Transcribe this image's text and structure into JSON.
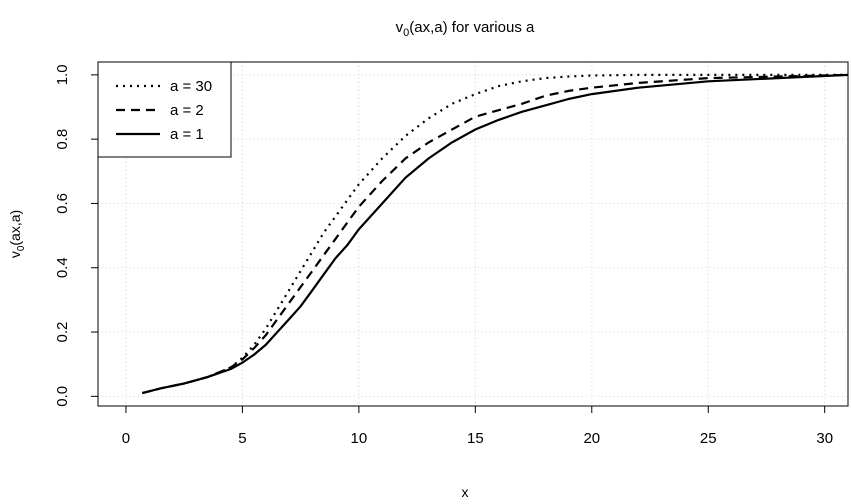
{
  "chart_data": {
    "type": "line",
    "title_main": "v",
    "title_sub": "0",
    "title_rest": "(ax,a) for various a",
    "xlabel": "x",
    "ylabel_main": "v",
    "ylabel_sub": "0",
    "ylabel_rest": "(ax,a)",
    "xlim": [
      -1.2,
      31
    ],
    "ylim": [
      -0.03,
      1.04
    ],
    "x_ticks": [
      0,
      5,
      10,
      15,
      20,
      25,
      30
    ],
    "y_ticks": [
      0.0,
      0.2,
      0.4,
      0.6,
      0.8,
      1.0
    ],
    "x_tick_labels": [
      "0",
      "5",
      "10",
      "15",
      "20",
      "25",
      "30"
    ],
    "y_tick_labels": [
      "0.0",
      "0.2",
      "0.4",
      "0.6",
      "0.8",
      "1.0"
    ],
    "grid": true,
    "legend_position": "top-left",
    "series": [
      {
        "name": "a = 30",
        "dash": "dotted",
        "x": [
          0.7,
          1.5,
          2.5,
          3.5,
          4.5,
          5.0,
          5.5,
          6.0,
          6.5,
          7.0,
          7.5,
          8.0,
          8.5,
          9.0,
          9.5,
          10.0,
          11.0,
          12.0,
          13.0,
          14.0,
          15.0,
          16.0,
          17.0,
          18.0,
          19.0,
          20.0,
          22.0,
          25.0,
          28.0,
          31.0
        ],
        "y": [
          0.01,
          0.025,
          0.04,
          0.06,
          0.09,
          0.12,
          0.16,
          0.21,
          0.27,
          0.33,
          0.39,
          0.45,
          0.51,
          0.56,
          0.61,
          0.66,
          0.74,
          0.81,
          0.865,
          0.91,
          0.94,
          0.965,
          0.98,
          0.99,
          0.995,
          0.998,
          1.0,
          1.0,
          1.0,
          1.0
        ]
      },
      {
        "name": "a = 2",
        "dash": "dashed",
        "x": [
          0.7,
          1.5,
          2.5,
          3.5,
          4.5,
          5.0,
          5.5,
          6.0,
          6.5,
          7.0,
          7.5,
          8.0,
          8.5,
          9.0,
          9.5,
          10.0,
          11.0,
          12.0,
          13.0,
          14.0,
          15.0,
          16.0,
          17.0,
          18.0,
          19.0,
          20.0,
          22.0,
          25.0,
          28.0,
          31.0
        ],
        "y": [
          0.01,
          0.025,
          0.04,
          0.06,
          0.09,
          0.115,
          0.15,
          0.19,
          0.24,
          0.29,
          0.34,
          0.39,
          0.44,
          0.49,
          0.54,
          0.59,
          0.67,
          0.74,
          0.79,
          0.83,
          0.87,
          0.89,
          0.91,
          0.935,
          0.95,
          0.96,
          0.975,
          0.99,
          0.995,
          1.0
        ]
      },
      {
        "name": "a = 1",
        "dash": "solid",
        "x": [
          0.7,
          1.5,
          2.5,
          3.5,
          4.5,
          5.0,
          5.5,
          6.0,
          6.5,
          7.0,
          7.5,
          8.0,
          8.5,
          9.0,
          9.5,
          10.0,
          11.0,
          12.0,
          13.0,
          14.0,
          15.0,
          16.0,
          17.0,
          18.0,
          19.0,
          20.0,
          22.0,
          25.0,
          28.0,
          31.0
        ],
        "y": [
          0.01,
          0.025,
          0.04,
          0.06,
          0.085,
          0.105,
          0.13,
          0.16,
          0.2,
          0.24,
          0.28,
          0.33,
          0.38,
          0.43,
          0.47,
          0.52,
          0.6,
          0.68,
          0.74,
          0.79,
          0.83,
          0.86,
          0.885,
          0.905,
          0.925,
          0.94,
          0.96,
          0.98,
          0.99,
          1.0
        ]
      }
    ]
  }
}
